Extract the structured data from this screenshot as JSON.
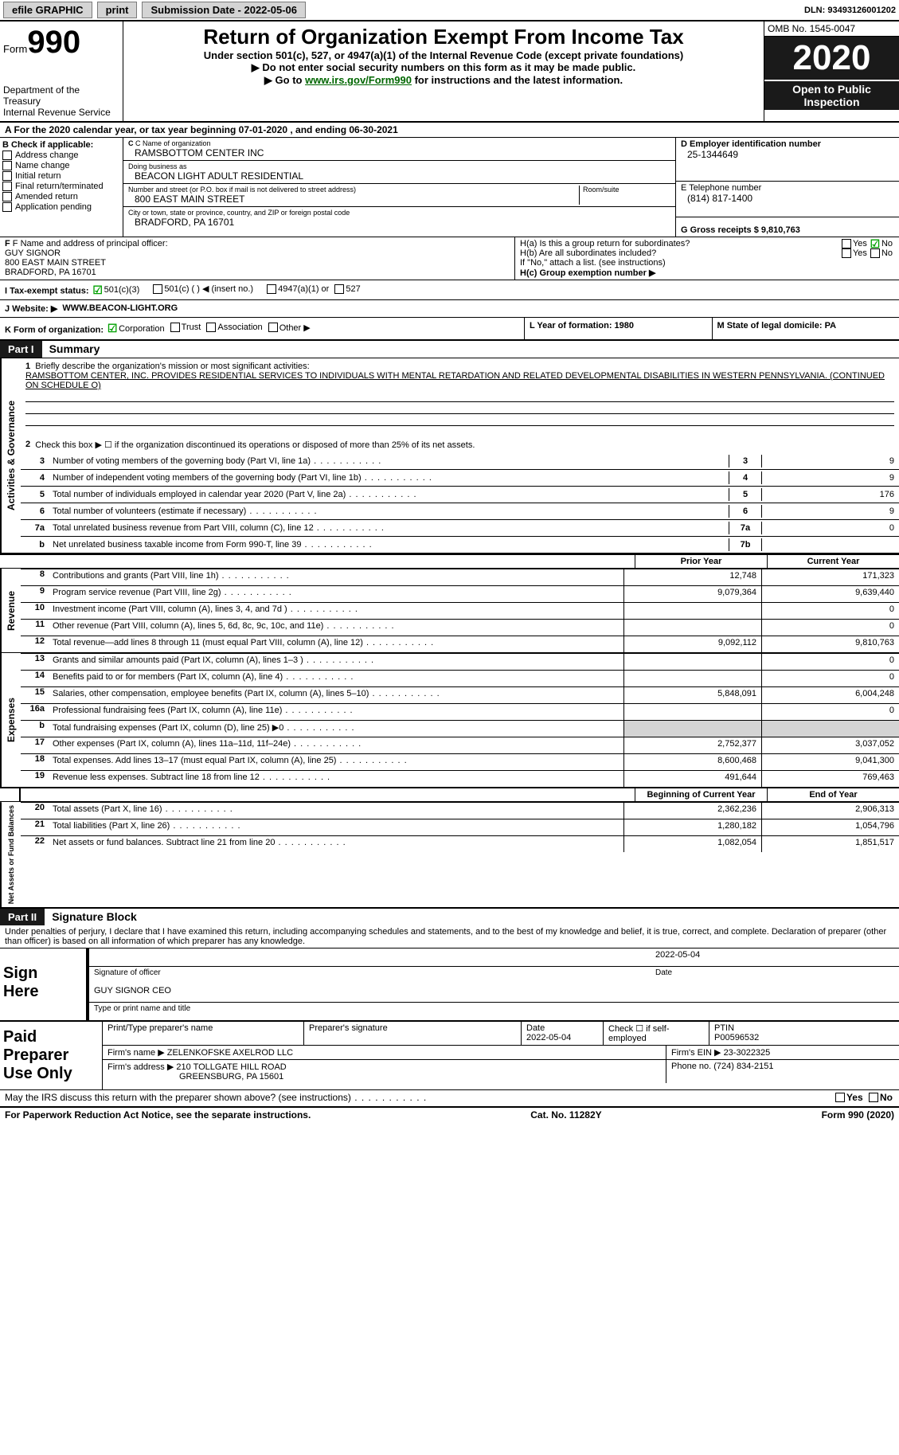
{
  "topbar": {
    "efile_label": "efile GRAPHIC",
    "print_label": "print",
    "submission_label": "Submission Date - 2022-05-06",
    "dln_label": "DLN: 93493126001202"
  },
  "header": {
    "form_prefix": "Form",
    "form_number": "990",
    "dept": "Department of the Treasury\nInternal Revenue Service",
    "title": "Return of Organization Exempt From Income Tax",
    "subtitle": "Under section 501(c), 527, or 4947(a)(1) of the Internal Revenue Code (except private foundations)",
    "donot": "▶ Do not enter social security numbers on this form as it may be made public.",
    "goto_prefix": "▶ Go to ",
    "goto_link": "www.irs.gov/Form990",
    "goto_suffix": " for instructions and the latest information.",
    "omb": "OMB No. 1545-0047",
    "year": "2020",
    "open": "Open to Public Inspection"
  },
  "row_a": "A For the 2020 calendar year, or tax year beginning 07-01-2020    , and ending 06-30-2021",
  "section_b": {
    "header": "B Check if applicable:",
    "items": [
      "Address change",
      "Name change",
      "Initial return",
      "Final return/terminated",
      "Amended return",
      "Application pending"
    ]
  },
  "section_c": {
    "name_label": "C Name of organization",
    "name": "RAMSBOTTOM CENTER INC",
    "dba_label": "Doing business as",
    "dba": "BEACON LIGHT ADULT RESIDENTIAL",
    "street_label": "Number and street (or P.O. box if mail is not delivered to street address)",
    "street": "800 EAST MAIN STREET",
    "room_label": "Room/suite",
    "city_label": "City or town, state or province, country, and ZIP or foreign postal code",
    "city": "BRADFORD, PA  16701"
  },
  "section_d": {
    "ein_label": "D Employer identification number",
    "ein": "25-1344649",
    "phone_label": "E Telephone number",
    "phone": "(814) 817-1400",
    "gross_label": "G Gross receipts $ 9,810,763"
  },
  "officer": {
    "label": "F Name and address of principal officer:",
    "name": "GUY SIGNOR",
    "street": "800 EAST MAIN STREET",
    "city": "BRADFORD, PA  16701"
  },
  "group": {
    "ha_label": "H(a)  Is this a group return for subordinates?",
    "hb_label": "H(b)  Are all subordinates included?",
    "note": "If \"No,\" attach a list. (see instructions)",
    "hc_label": "H(c)  Group exemption number ▶",
    "yes": "Yes",
    "no": "No"
  },
  "tax_status": {
    "label": "I    Tax-exempt status:",
    "opt1": "501(c)(3)",
    "opt2": "501(c) (  ) ◀ (insert no.)",
    "opt3": "4947(a)(1) or",
    "opt4": "527"
  },
  "website": {
    "label": "J   Website: ▶",
    "value": "WWW.BEACON-LIGHT.ORG"
  },
  "korg": {
    "label": "K Form of organization:",
    "corp": "Corporation",
    "trust": "Trust",
    "assoc": "Association",
    "other": "Other ▶",
    "year_label": "L Year of formation: 1980",
    "state_label": "M State of legal domicile: PA"
  },
  "part1": {
    "header": "Part I",
    "title": "Summary",
    "mission_label": "Briefly describe the organization's mission or most significant activities:",
    "mission": "RAMSBOTTOM CENTER, INC. PROVIDES RESIDENTIAL SERVICES TO INDIVIDUALS WITH MENTAL RETARDATION AND RELATED DEVELOPMENTAL DISABILITIES IN WESTERN PENNSYLVANIA. (CONTINUED ON SCHEDULE O)",
    "line2": "Check this box ▶ ☐  if the organization discontinued its operations or disposed of more than 25% of its net assets.",
    "sides": {
      "gov": "Activities & Governance",
      "rev": "Revenue",
      "exp": "Expenses",
      "net": "Net Assets or Fund Balances"
    }
  },
  "governance_lines": [
    {
      "num": "3",
      "text": "Number of voting members of the governing body (Part VI, line 1a)",
      "box": "3",
      "val": "9"
    },
    {
      "num": "4",
      "text": "Number of independent voting members of the governing body (Part VI, line 1b)",
      "box": "4",
      "val": "9"
    },
    {
      "num": "5",
      "text": "Total number of individuals employed in calendar year 2020 (Part V, line 2a)",
      "box": "5",
      "val": "176"
    },
    {
      "num": "6",
      "text": "Total number of volunteers (estimate if necessary)",
      "box": "6",
      "val": "9"
    },
    {
      "num": "7a",
      "text": "Total unrelated business revenue from Part VIII, column (C), line 12",
      "box": "7a",
      "val": "0"
    },
    {
      "num": "b",
      "text": "Net unrelated business taxable income from Form 990-T, line 39",
      "box": "7b",
      "val": ""
    }
  ],
  "headers_2col": {
    "prior": "Prior Year",
    "current": "Current Year"
  },
  "revenue_lines": [
    {
      "num": "8",
      "text": "Contributions and grants (Part VIII, line 1h)",
      "prior": "12,748",
      "current": "171,323"
    },
    {
      "num": "9",
      "text": "Program service revenue (Part VIII, line 2g)",
      "prior": "9,079,364",
      "current": "9,639,440"
    },
    {
      "num": "10",
      "text": "Investment income (Part VIII, column (A), lines 3, 4, and 7d )",
      "prior": "",
      "current": "0"
    },
    {
      "num": "11",
      "text": "Other revenue (Part VIII, column (A), lines 5, 6d, 8c, 9c, 10c, and 11e)",
      "prior": "",
      "current": "0"
    },
    {
      "num": "12",
      "text": "Total revenue—add lines 8 through 11 (must equal Part VIII, column (A), line 12)",
      "prior": "9,092,112",
      "current": "9,810,763"
    }
  ],
  "expense_lines": [
    {
      "num": "13",
      "text": "Grants and similar amounts paid (Part IX, column (A), lines 1–3 )",
      "prior": "",
      "current": "0"
    },
    {
      "num": "14",
      "text": "Benefits paid to or for members (Part IX, column (A), line 4)",
      "prior": "",
      "current": "0"
    },
    {
      "num": "15",
      "text": "Salaries, other compensation, employee benefits (Part IX, column (A), lines 5–10)",
      "prior": "5,848,091",
      "current": "6,004,248"
    },
    {
      "num": "16a",
      "text": "Professional fundraising fees (Part IX, column (A), line 11e)",
      "prior": "",
      "current": "0"
    },
    {
      "num": "b",
      "text": "Total fundraising expenses (Part IX, column (D), line 25) ▶0",
      "prior": "GREY",
      "current": "GREY"
    },
    {
      "num": "17",
      "text": "Other expenses (Part IX, column (A), lines 11a–11d, 11f–24e)",
      "prior": "2,752,377",
      "current": "3,037,052"
    },
    {
      "num": "18",
      "text": "Total expenses. Add lines 13–17 (must equal Part IX, column (A), line 25)",
      "prior": "8,600,468",
      "current": "9,041,300"
    },
    {
      "num": "19",
      "text": "Revenue less expenses. Subtract line 18 from line 12",
      "prior": "491,644",
      "current": "769,463"
    }
  ],
  "headers_net": {
    "begin": "Beginning of Current Year",
    "end": "End of Year"
  },
  "net_lines": [
    {
      "num": "20",
      "text": "Total assets (Part X, line 16)",
      "prior": "2,362,236",
      "current": "2,906,313"
    },
    {
      "num": "21",
      "text": "Ilities liabilities (Part X, line 26)",
      "text_real": "Total liabilities (Part X, line 26)",
      "prior": "1,280,182",
      "current": "1,054,796"
    },
    {
      "num": "22",
      "text": "Net assets or fund balances. Subtract line 21 from line 20",
      "prior": "1,082,054",
      "current": "1,851,517"
    }
  ],
  "part2": {
    "header": "Part II",
    "title": "Signature Block",
    "penalty": "Under penalties of perjury, I declare that I have examined this return, including accompanying schedules and statements, and to the best of my knowledge and belief, it is true, correct, and complete. Declaration of preparer (other than officer) is based on all information of which preparer has any knowledge."
  },
  "sign": {
    "label": "Sign Here",
    "sig_label": "Signature of officer",
    "date": "2022-05-04",
    "date_label": "Date",
    "name": "GUY SIGNOR  CEO",
    "name_label": "Type or print name and title"
  },
  "preparer": {
    "label": "Paid Preparer Use Only",
    "name_label": "Print/Type preparer's name",
    "sig_label": "Preparer's signature",
    "date_label": "Date",
    "date": "2022-05-04",
    "check_label": "Check ☐ if self-employed",
    "ptin_label": "PTIN",
    "ptin": "P00596532",
    "firm_name_label": "Firm's name    ▶",
    "firm_name": "ZELENKOFSKE AXELROD LLC",
    "firm_ein_label": "Firm's EIN ▶",
    "firm_ein": "23-3022325",
    "firm_addr_label": "Firm's address ▶",
    "firm_addr1": "210 TOLLGATE HILL ROAD",
    "firm_addr2": "GREENSBURG, PA  15601",
    "phone_label": "Phone no.",
    "phone": "(724) 834-2151"
  },
  "footer": {
    "irs_discuss": "May the IRS discuss this return with the preparer shown above? (see instructions)",
    "yes": "Yes",
    "no": "No",
    "paperwork": "For Paperwork Reduction Act Notice, see the separate instructions.",
    "cat": "Cat. No. 11282Y",
    "form": "Form 990 (2020)"
  }
}
